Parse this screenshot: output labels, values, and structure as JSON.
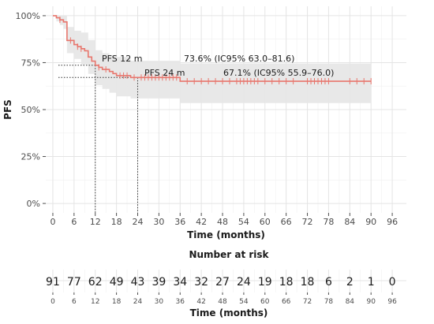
{
  "chart_data": [
    {
      "type": "line",
      "subtype": "kaplan-meier",
      "title": "",
      "xlabel": "Time (months)",
      "ylabel": "PFS",
      "xlim": [
        -2,
        100
      ],
      "ylim": [
        0,
        1
      ],
      "x_ticks": [
        0,
        6,
        12,
        18,
        24,
        30,
        36,
        42,
        48,
        54,
        60,
        66,
        72,
        78,
        84,
        90,
        96
      ],
      "y_ticks": [
        {
          "value": 0.0,
          "label": "0%"
        },
        {
          "value": 0.25,
          "label": "25%"
        },
        {
          "value": 0.5,
          "label": "50%"
        },
        {
          "value": 0.75,
          "label": "75%"
        },
        {
          "value": 1.0,
          "label": "100%"
        }
      ],
      "grid": true,
      "line_color": "#e8766d",
      "ci_color": "#e6e6e6",
      "series": [
        {
          "survival_steps": [
            {
              "time": 0,
              "value": 1.0
            },
            {
              "time": 1,
              "value": 0.989
            },
            {
              "time": 2,
              "value": 0.978
            },
            {
              "time": 3,
              "value": 0.967
            },
            {
              "time": 4,
              "value": 0.868
            },
            {
              "time": 6,
              "value": 0.846
            },
            {
              "time": 7,
              "value": 0.835
            },
            {
              "time": 8,
              "value": 0.824
            },
            {
              "time": 9,
              "value": 0.813
            },
            {
              "time": 10,
              "value": 0.78
            },
            {
              "time": 11,
              "value": 0.758
            },
            {
              "time": 12,
              "value": 0.736
            },
            {
              "time": 13,
              "value": 0.725
            },
            {
              "time": 14,
              "value": 0.714
            },
            {
              "time": 16,
              "value": 0.703
            },
            {
              "time": 17,
              "value": 0.692
            },
            {
              "time": 18,
              "value": 0.681
            },
            {
              "time": 22,
              "value": 0.671
            },
            {
              "time": 36,
              "value": 0.651
            },
            {
              "time": 90,
              "value": 0.651
            }
          ],
          "ci_steps": [
            {
              "time": 0,
              "lower": 1.0,
              "upper": 1.0
            },
            {
              "time": 1,
              "lower": 0.97,
              "upper": 1.0
            },
            {
              "time": 2,
              "lower": 0.95,
              "upper": 1.0
            },
            {
              "time": 3,
              "lower": 0.93,
              "upper": 1.0
            },
            {
              "time": 4,
              "lower": 0.8,
              "upper": 0.94
            },
            {
              "time": 6,
              "lower": 0.77,
              "upper": 0.92
            },
            {
              "time": 8,
              "lower": 0.74,
              "upper": 0.91
            },
            {
              "time": 10,
              "lower": 0.69,
              "upper": 0.87
            },
            {
              "time": 12,
              "lower": 0.63,
              "upper": 0.816
            },
            {
              "time": 14,
              "lower": 0.61,
              "upper": 0.8
            },
            {
              "time": 16,
              "lower": 0.59,
              "upper": 0.79
            },
            {
              "time": 18,
              "lower": 0.57,
              "upper": 0.78
            },
            {
              "time": 22,
              "lower": 0.559,
              "upper": 0.76
            },
            {
              "time": 36,
              "lower": 0.535,
              "upper": 0.745
            },
            {
              "time": 90,
              "lower": 0.535,
              "upper": 0.745
            }
          ],
          "censor_times": [
            2,
            5,
            7,
            8,
            13,
            15,
            19,
            20,
            21,
            23,
            25,
            26,
            27,
            28,
            29,
            30,
            31,
            32,
            33,
            34,
            35,
            38,
            40,
            42,
            44,
            46,
            48,
            50,
            52,
            53,
            54,
            55,
            56,
            57,
            58,
            60,
            62,
            64,
            66,
            68,
            72,
            73,
            74,
            75,
            76,
            77,
            78,
            84,
            86,
            88,
            90
          ]
        }
      ],
      "annotations": [
        {
          "label": "PFS 12 m",
          "text": "73.6% (IC95% 63.0–81.6)",
          "time": 12,
          "value": 0.736
        },
        {
          "label": "PFS 24 m",
          "text": "67.1% (IC95% 55.9–76.0)",
          "time": 24,
          "value": 0.671
        }
      ]
    },
    {
      "type": "table",
      "title": "Number at risk",
      "xlabel": "Time (months)",
      "times": [
        0,
        6,
        12,
        18,
        24,
        30,
        36,
        42,
        48,
        54,
        60,
        66,
        72,
        78,
        84,
        90,
        96
      ],
      "values": [
        91,
        77,
        62,
        49,
        43,
        39,
        34,
        32,
        27,
        24,
        19,
        18,
        18,
        6,
        2,
        1,
        0
      ]
    }
  ]
}
